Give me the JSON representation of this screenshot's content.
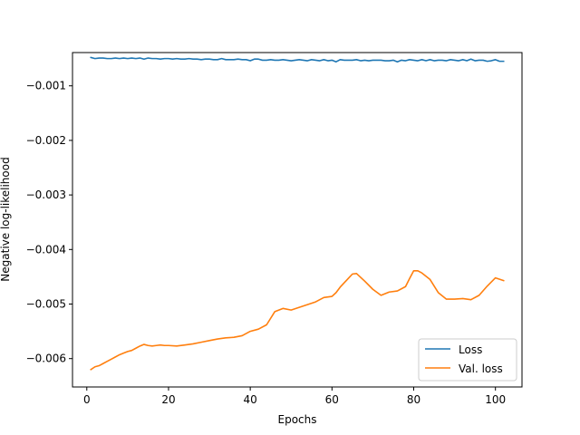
{
  "chart_data": {
    "type": "line",
    "title": "",
    "xlabel": "Epochs",
    "ylabel": "Negative log-likelihood",
    "xlim": [
      -3.5,
      106.5
    ],
    "ylim": [
      -0.00652,
      -0.00039
    ],
    "xticks": [
      0,
      20,
      40,
      60,
      80,
      100
    ],
    "yticks": [
      -0.006,
      -0.005,
      -0.004,
      -0.003,
      -0.002,
      -0.001
    ],
    "yticklabels": [
      "−0.006",
      "−0.005",
      "−0.004",
      "−0.003",
      "−0.002",
      "−0.001"
    ],
    "grid": false,
    "legend": "lower-right",
    "series": [
      {
        "name": "Loss",
        "color": "#1f77b4",
        "x": [
          1,
          2,
          3,
          4,
          5,
          6,
          7,
          8,
          9,
          10,
          11,
          12,
          13,
          14,
          15,
          16,
          17,
          18,
          19,
          20,
          21,
          22,
          23,
          24,
          25,
          26,
          27,
          28,
          29,
          30,
          31,
          32,
          33,
          34,
          35,
          36,
          37,
          38,
          39,
          40,
          41,
          42,
          43,
          44,
          45,
          46,
          47,
          48,
          49,
          50,
          51,
          52,
          53,
          54,
          55,
          56,
          57,
          58,
          59,
          60,
          61,
          62,
          63,
          64,
          65,
          66,
          67,
          68,
          69,
          70,
          71,
          72,
          73,
          74,
          75,
          76,
          77,
          78,
          79,
          80,
          81,
          82,
          83,
          84,
          85,
          86,
          87,
          88,
          89,
          90,
          91,
          92,
          93,
          94,
          95,
          96,
          97,
          98,
          99,
          100,
          101,
          102
        ],
        "y": [
          -0.00048,
          -0.0005,
          -0.00049,
          -0.00049,
          -0.0005,
          -0.0005,
          -0.00049,
          -0.0005,
          -0.00049,
          -0.0005,
          -0.00049,
          -0.0005,
          -0.00049,
          -0.00051,
          -0.00049,
          -0.0005,
          -0.0005,
          -0.00051,
          -0.0005,
          -0.0005,
          -0.00051,
          -0.0005,
          -0.00051,
          -0.00051,
          -0.0005,
          -0.00051,
          -0.00051,
          -0.00052,
          -0.00051,
          -0.00051,
          -0.00052,
          -0.00052,
          -0.0005,
          -0.00052,
          -0.00052,
          -0.00052,
          -0.00051,
          -0.00052,
          -0.00052,
          -0.00054,
          -0.00051,
          -0.00051,
          -0.00053,
          -0.00053,
          -0.00052,
          -0.00053,
          -0.00053,
          -0.00052,
          -0.00053,
          -0.00054,
          -0.00053,
          -0.00052,
          -0.00053,
          -0.00054,
          -0.00052,
          -0.00053,
          -0.00054,
          -0.00052,
          -0.00054,
          -0.00053,
          -0.00056,
          -0.00052,
          -0.00053,
          -0.00053,
          -0.00053,
          -0.00052,
          -0.00054,
          -0.00053,
          -0.00054,
          -0.00053,
          -0.00053,
          -0.00053,
          -0.00054,
          -0.00054,
          -0.00053,
          -0.00056,
          -0.00053,
          -0.00054,
          -0.00052,
          -0.00053,
          -0.00054,
          -0.00052,
          -0.00054,
          -0.00052,
          -0.00054,
          -0.00053,
          -0.00053,
          -0.00054,
          -0.00052,
          -0.00053,
          -0.00054,
          -0.00052,
          -0.00054,
          -0.00051,
          -0.00054,
          -0.00053,
          -0.00053,
          -0.00055,
          -0.00054,
          -0.00052,
          -0.00055,
          -0.00055
        ]
      },
      {
        "name": "Val. loss",
        "color": "#ff7f0e",
        "x": [
          1,
          2,
          3,
          4,
          5,
          6,
          7,
          8,
          9,
          10,
          11,
          12,
          13,
          14,
          15,
          16,
          17,
          18,
          19,
          20,
          22,
          24,
          26,
          28,
          30,
          32,
          34,
          36,
          38,
          40,
          42,
          44,
          46,
          48,
          50,
          52,
          54,
          56,
          58,
          60,
          61,
          62,
          64,
          65,
          66,
          68,
          70,
          72,
          74,
          76,
          78,
          79,
          80,
          81,
          82,
          84,
          86,
          88,
          90,
          92,
          94,
          96,
          98,
          100,
          102
        ],
        "y": [
          -0.0062,
          -0.00615,
          -0.00613,
          -0.00609,
          -0.00605,
          -0.00601,
          -0.00597,
          -0.00593,
          -0.0059,
          -0.00587,
          -0.00585,
          -0.00581,
          -0.00577,
          -0.00574,
          -0.00576,
          -0.00577,
          -0.00576,
          -0.00575,
          -0.00576,
          -0.00576,
          -0.00577,
          -0.00575,
          -0.00573,
          -0.0057,
          -0.00567,
          -0.00564,
          -0.00562,
          -0.00561,
          -0.00558,
          -0.0055,
          -0.00546,
          -0.00538,
          -0.00514,
          -0.00508,
          -0.00511,
          -0.00506,
          -0.00501,
          -0.00496,
          -0.00488,
          -0.00486,
          -0.00479,
          -0.00469,
          -0.00453,
          -0.00445,
          -0.00444,
          -0.00458,
          -0.00473,
          -0.00484,
          -0.00478,
          -0.00476,
          -0.00468,
          -0.00453,
          -0.00439,
          -0.00439,
          -0.00443,
          -0.00455,
          -0.00479,
          -0.00491,
          -0.00491,
          -0.0049,
          -0.00492,
          -0.00484,
          -0.00467,
          -0.00452,
          -0.00457
        ]
      }
    ]
  }
}
